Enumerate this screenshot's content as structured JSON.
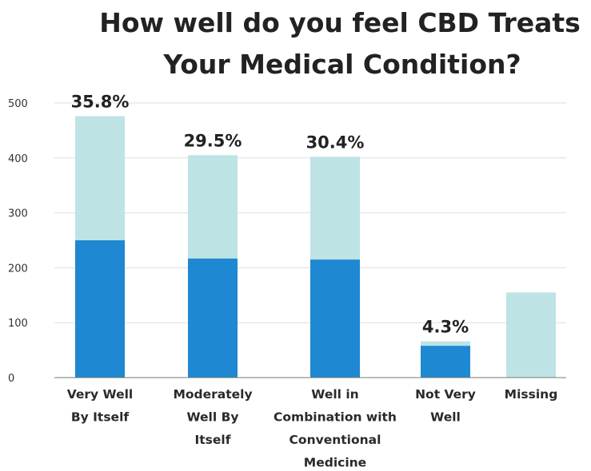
{
  "chart_data": {
    "type": "bar",
    "stacked": true,
    "title": [
      "How well do you feel CBD Treats",
      "Your Medical Condition?"
    ],
    "xlabel": "",
    "ylabel": "",
    "ylim": [
      0,
      500
    ],
    "yticks": [
      "0",
      "100",
      "200",
      "300",
      "400",
      "500"
    ],
    "grid": true,
    "categories": [
      [
        "Very Well",
        "By Itself"
      ],
      [
        "Moderately",
        "Well By",
        "Itself"
      ],
      [
        "Well in",
        "Combination with",
        "Conventional",
        "Medicine"
      ],
      [
        "Not Very",
        "Well"
      ],
      [
        "Missing"
      ]
    ],
    "series": [
      {
        "color": "#1e88d2",
        "values": [
          250,
          217,
          215,
          58,
          0
        ]
      },
      {
        "color": "#bde3e5",
        "values": [
          226,
          188,
          187,
          8,
          155
        ]
      }
    ],
    "data_labels": [
      "35.8%",
      "29.5%",
      "30.4%",
      "4.3%",
      ""
    ]
  }
}
